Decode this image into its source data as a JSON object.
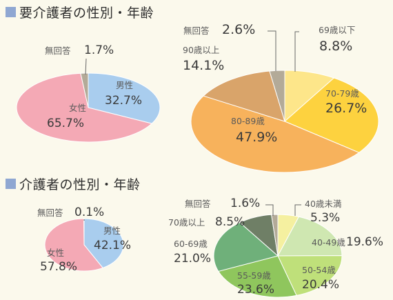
{
  "sections": [
    {
      "title": "要介護者の性別・年齢"
    },
    {
      "title": "介護者の性別・年齢"
    }
  ],
  "colors": {
    "title_marker": "#8fa7d2",
    "background": "#fbf9ec"
  },
  "chart_data": [
    {
      "type": "pie",
      "title": "",
      "section": "要介護者の性別・年齢",
      "slices": [
        {
          "label": "男性",
          "value": 32.7,
          "display": "32.7%",
          "color": "#a9cdee"
        },
        {
          "label": "女性",
          "value": 65.7,
          "display": "65.7%",
          "color": "#f4a9b5"
        },
        {
          "label": "無回答",
          "value": 1.7,
          "display": "1.7%",
          "color": "#b3aa98"
        }
      ]
    },
    {
      "type": "pie",
      "title": "",
      "section": "要介護者の性別・年齢",
      "slices": [
        {
          "label": "69歳以下",
          "value": 8.8,
          "display": "8.8%",
          "color": "#fde68a"
        },
        {
          "label": "70-79歳",
          "value": 26.7,
          "display": "26.7%",
          "color": "#fdd23f"
        },
        {
          "label": "80-89歳",
          "value": 47.9,
          "display": "47.9%",
          "color": "#f7b25c"
        },
        {
          "label": "90歳以上",
          "value": 14.1,
          "display": "14.1%",
          "color": "#d9a46a"
        },
        {
          "label": "無回答",
          "value": 2.6,
          "display": "2.6%",
          "color": "#b3aa98"
        }
      ]
    },
    {
      "type": "pie",
      "title": "",
      "section": "介護者の性別・年齢",
      "slices": [
        {
          "label": "男性",
          "value": 42.1,
          "display": "42.1%",
          "color": "#a9cdee"
        },
        {
          "label": "女性",
          "value": 57.8,
          "display": "57.8%",
          "color": "#f4a9b5"
        },
        {
          "label": "無回答",
          "value": 0.1,
          "display": "0.1%",
          "color": "#b3aa98"
        }
      ]
    },
    {
      "type": "pie",
      "title": "",
      "section": "介護者の性別・年齢",
      "slices": [
        {
          "label": "40歳未満",
          "value": 5.3,
          "display": "5.3%",
          "color": "#f5f0a0"
        },
        {
          "label": "40-49歳",
          "value": 19.6,
          "display": "19.6%",
          "color": "#cfe7b1"
        },
        {
          "label": "50-54歳",
          "value": 20.4,
          "display": "20.4%",
          "color": "#bfe07a"
        },
        {
          "label": "55-59歳",
          "value": 23.6,
          "display": "23.6%",
          "color": "#8fc65d"
        },
        {
          "label": "60-69歳",
          "value": 21.0,
          "display": "21.0%",
          "color": "#6fb07a"
        },
        {
          "label": "70歳以上",
          "value": 8.5,
          "display": "8.5%",
          "color": "#6f7f66"
        },
        {
          "label": "無回答",
          "value": 1.6,
          "display": "1.6%",
          "color": "#b3aa98"
        }
      ]
    }
  ]
}
